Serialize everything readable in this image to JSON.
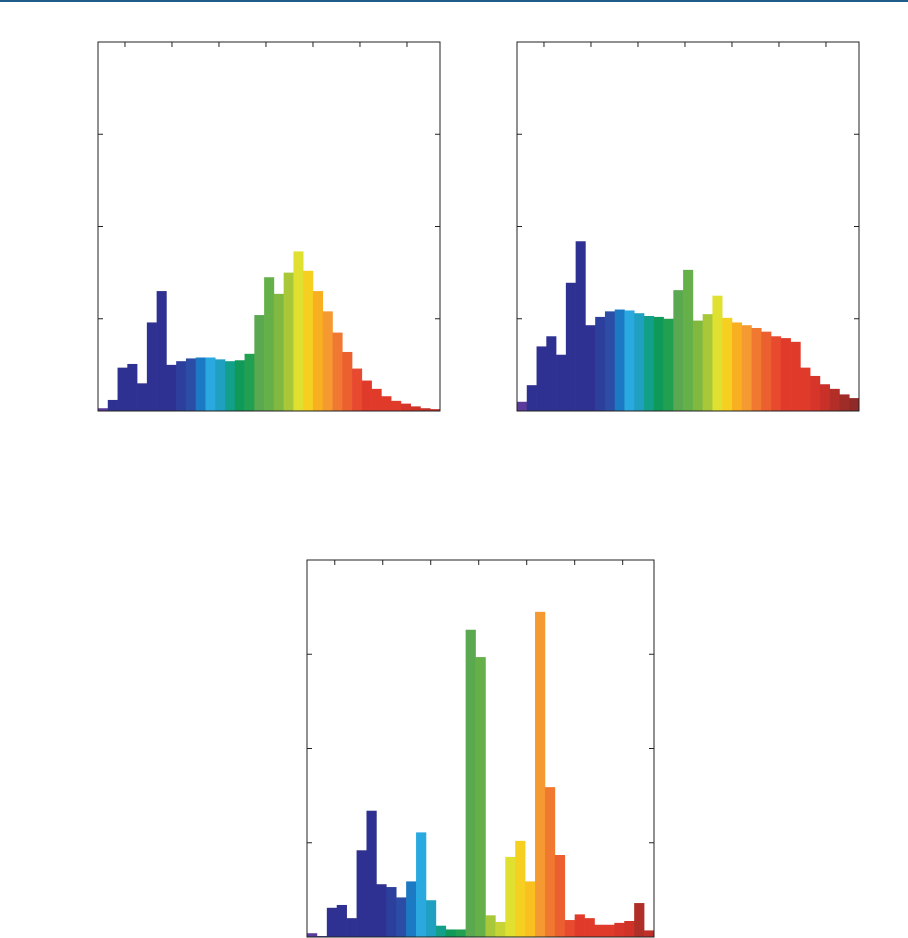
{
  "chart_data": [
    {
      "type": "histogram",
      "bins": [
        0,
        1,
        2,
        3,
        4,
        5,
        6,
        7,
        8,
        9,
        10,
        11,
        12,
        13,
        14,
        15,
        16,
        17,
        18,
        19,
        20,
        21,
        22,
        23,
        24,
        25,
        26,
        27,
        28,
        29,
        30,
        31,
        32,
        33,
        34,
        35
      ],
      "values": [
        0.03,
        0.12,
        0.47,
        0.51,
        0.3,
        0.96,
        1.3,
        0.5,
        0.54,
        0.57,
        0.58,
        0.58,
        0.56,
        0.54,
        0.55,
        0.62,
        1.04,
        1.45,
        1.27,
        1.5,
        1.73,
        1.52,
        1.3,
        1.08,
        0.85,
        0.64,
        0.46,
        0.33,
        0.24,
        0.16,
        0.11,
        0.08,
        0.05,
        0.03,
        0.02
      ],
      "colors": [
        "#5a3a9a",
        "#2e3192",
        "#2e3192",
        "#2e3192",
        "#2e3192",
        "#2e3192",
        "#2e3192",
        "#2e3192",
        "#2d3f9c",
        "#2b4da6",
        "#1c7ac4",
        "#29a9e0",
        "#1fa0c0",
        "#12a08a",
        "#0f9a5a",
        "#20a050",
        "#5aa850",
        "#66b04a",
        "#80b840",
        "#a8c83a",
        "#e0e030",
        "#f5d020",
        "#f9b020",
        "#f59a30",
        "#f07830",
        "#ec6030",
        "#e84a30",
        "#e03a2a",
        "#e03a2a",
        "#e03a2a",
        "#e03a2a",
        "#d8352a",
        "#d03228",
        "#c83028",
        "#c02e28"
      ],
      "xlim": [
        0,
        35
      ],
      "xticks": [
        2.76,
        7.57,
        12.38,
        17.19,
        22.0,
        26.81,
        31.62
      ],
      "ylim": [
        0,
        4
      ],
      "yticks": [
        1,
        2,
        3
      ]
    },
    {
      "type": "histogram",
      "bins": [
        0,
        1,
        2,
        3,
        4,
        5,
        6,
        7,
        8,
        9,
        10,
        11,
        12,
        13,
        14,
        15,
        16,
        17,
        18,
        19,
        20,
        21,
        22,
        23,
        24,
        25,
        26,
        27,
        28,
        29,
        30,
        31,
        32,
        33,
        34,
        35
      ],
      "values": [
        0.1,
        0.28,
        0.7,
        0.81,
        0.61,
        1.39,
        1.84,
        0.93,
        1.02,
        1.08,
        1.1,
        1.09,
        1.06,
        1.03,
        1.02,
        1.0,
        1.31,
        1.53,
        0.98,
        1.05,
        1.25,
        1.01,
        0.96,
        0.93,
        0.9,
        0.86,
        0.81,
        0.79,
        0.75,
        0.47,
        0.38,
        0.29,
        0.24,
        0.18,
        0.14
      ],
      "colors": [
        "#5a3a9a",
        "#2e3192",
        "#2e3192",
        "#2e3192",
        "#2e3192",
        "#2e3192",
        "#2e3192",
        "#2e3192",
        "#2d3f9c",
        "#2b4da6",
        "#1c7ac4",
        "#29a9e0",
        "#1fa0c0",
        "#12a08a",
        "#0f9a5a",
        "#20a050",
        "#5aa850",
        "#66b04a",
        "#80b840",
        "#a8c83a",
        "#e0e030",
        "#f5d020",
        "#f9b020",
        "#f59a30",
        "#f07830",
        "#ec6030",
        "#e84a30",
        "#e03a2a",
        "#e03a2a",
        "#e03a2a",
        "#d8352a",
        "#c83028",
        "#b42e28",
        "#a02c28",
        "#902a28"
      ],
      "xlim": [
        0,
        35
      ],
      "xticks": [
        2.76,
        7.57,
        12.38,
        17.19,
        22.0,
        26.81,
        31.62
      ],
      "ylim": [
        0,
        4
      ],
      "yticks": [
        1,
        2,
        3
      ]
    },
    {
      "type": "histogram",
      "bins": [
        0,
        1,
        2,
        3,
        4,
        5,
        6,
        7,
        8,
        9,
        10,
        11,
        12,
        13,
        14,
        15,
        16,
        17,
        18,
        19,
        20,
        21,
        22,
        23,
        24,
        25,
        26,
        27,
        28,
        29,
        30,
        31,
        32,
        33,
        34,
        35
      ],
      "values": [
        0.04,
        0.01,
        0.31,
        0.34,
        0.2,
        0.92,
        1.34,
        0.56,
        0.53,
        0.42,
        0.59,
        1.11,
        0.39,
        0.12,
        0.08,
        0.08,
        3.26,
        2.97,
        0.23,
        0.16,
        0.85,
        1.02,
        0.59,
        3.45,
        1.59,
        0.87,
        0.18,
        0.24,
        0.2,
        0.13,
        0.13,
        0.15,
        0.17,
        0.36,
        0.07
      ],
      "colors": [
        "#5a3a9a",
        "#2e3192",
        "#2e3192",
        "#2e3192",
        "#2e3192",
        "#2e3192",
        "#2e3192",
        "#2e3192",
        "#2d3f9c",
        "#2b4da6",
        "#1c7ac4",
        "#29a9e0",
        "#1fa0c0",
        "#12a08a",
        "#0f9a5a",
        "#20a050",
        "#5aa850",
        "#66b04a",
        "#a8c83a",
        "#c8d436",
        "#e0e030",
        "#f5d020",
        "#f9c020",
        "#f59a30",
        "#f07830",
        "#ec6030",
        "#e84a30",
        "#e03a2a",
        "#e03a2a",
        "#e03a2a",
        "#e03a2a",
        "#d8352a",
        "#d03228",
        "#b02e28",
        "#c02e28"
      ],
      "xlim": [
        0,
        35
      ],
      "xticks": [
        2.8,
        7.64,
        12.48,
        17.32,
        22.16,
        27.0,
        31.84
      ],
      "ylim": [
        0,
        4
      ],
      "yticks": [
        1,
        2,
        3
      ]
    }
  ]
}
